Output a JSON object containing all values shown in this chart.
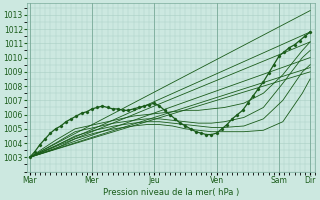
{
  "xlabel": "Pression niveau de la mer( hPa )",
  "ylim": [
    1002.0,
    1013.8
  ],
  "yticks": [
    1003,
    1004,
    1005,
    1006,
    1007,
    1008,
    1009,
    1010,
    1011,
    1012,
    1013
  ],
  "xtick_labels": [
    "Mar",
    "Mer",
    "Jeu",
    "Ven",
    "Sam",
    "Dir"
  ],
  "xtick_positions": [
    0,
    48,
    96,
    144,
    192,
    216
  ],
  "xlim": [
    -2,
    220
  ],
  "bg_color": "#cce8e0",
  "grid_color": "#aacfc5",
  "line_color": "#1a5c1a",
  "straight_lines": [
    {
      "x0": 0,
      "y0": 1003.0,
      "x1": 216,
      "y1": 1013.3
    },
    {
      "x0": 0,
      "y0": 1003.0,
      "x1": 216,
      "y1": 1011.8
    },
    {
      "x0": 0,
      "y0": 1003.0,
      "x1": 216,
      "y1": 1011.1
    },
    {
      "x0": 0,
      "y0": 1003.0,
      "x1": 216,
      "y1": 1010.0
    },
    {
      "x0": 0,
      "y0": 1003.0,
      "x1": 216,
      "y1": 1009.3
    },
    {
      "x0": 0,
      "y0": 1003.0,
      "x1": 216,
      "y1": 1009.0
    }
  ],
  "curved_lines": [
    {
      "x": [
        0,
        20,
        35,
        50,
        65,
        80,
        90,
        100,
        110,
        120,
        130,
        140,
        150,
        165,
        180,
        195,
        210,
        216
      ],
      "y": [
        1003.0,
        1004.2,
        1005.0,
        1005.3,
        1005.6,
        1005.9,
        1006.0,
        1006.1,
        1006.2,
        1006.3,
        1006.3,
        1006.4,
        1006.5,
        1006.8,
        1007.5,
        1008.8,
        1010.5,
        1011.1
      ]
    },
    {
      "x": [
        0,
        20,
        35,
        50,
        65,
        80,
        90,
        100,
        110,
        120,
        130,
        140,
        150,
        165,
        180,
        195,
        210,
        216
      ],
      "y": [
        1003.0,
        1004.0,
        1004.8,
        1005.1,
        1005.4,
        1005.6,
        1005.7,
        1005.7,
        1005.6,
        1005.5,
        1005.4,
        1005.4,
        1005.5,
        1005.8,
        1006.5,
        1008.2,
        1010.0,
        1010.5
      ]
    },
    {
      "x": [
        0,
        20,
        35,
        50,
        65,
        80,
        90,
        100,
        110,
        120,
        130,
        140,
        150,
        165,
        180,
        195,
        210,
        216
      ],
      "y": [
        1003.0,
        1003.8,
        1004.5,
        1004.9,
        1005.2,
        1005.4,
        1005.5,
        1005.5,
        1005.4,
        1005.3,
        1005.2,
        1005.1,
        1005.1,
        1005.2,
        1005.7,
        1007.0,
        1009.0,
        1009.5
      ]
    },
    {
      "x": [
        0,
        20,
        35,
        50,
        65,
        80,
        90,
        100,
        110,
        120,
        130,
        140,
        150,
        165,
        180,
        195,
        210,
        216
      ],
      "y": [
        1003.0,
        1003.6,
        1004.3,
        1004.7,
        1005.0,
        1005.2,
        1005.3,
        1005.3,
        1005.2,
        1005.0,
        1004.9,
        1004.8,
        1004.8,
        1004.8,
        1004.9,
        1005.5,
        1007.5,
        1008.5
      ]
    }
  ],
  "main_series": {
    "x": [
      0,
      4,
      8,
      12,
      16,
      20,
      24,
      28,
      32,
      36,
      40,
      44,
      48,
      52,
      56,
      60,
      64,
      68,
      72,
      76,
      80,
      84,
      88,
      92,
      96,
      100,
      104,
      108,
      112,
      116,
      120,
      124,
      128,
      132,
      136,
      140,
      144,
      148,
      152,
      156,
      160,
      164,
      168,
      172,
      176,
      180,
      184,
      188,
      192,
      196,
      200,
      204,
      208,
      212,
      216
    ],
    "y": [
      1003.0,
      1003.4,
      1003.9,
      1004.3,
      1004.7,
      1005.0,
      1005.2,
      1005.5,
      1005.7,
      1005.9,
      1006.1,
      1006.2,
      1006.4,
      1006.5,
      1006.6,
      1006.5,
      1006.4,
      1006.4,
      1006.3,
      1006.3,
      1006.4,
      1006.5,
      1006.6,
      1006.7,
      1006.8,
      1006.6,
      1006.3,
      1006.0,
      1005.7,
      1005.4,
      1005.2,
      1005.0,
      1004.8,
      1004.7,
      1004.6,
      1004.6,
      1004.7,
      1005.0,
      1005.3,
      1005.7,
      1006.0,
      1006.3,
      1006.8,
      1007.3,
      1007.8,
      1008.3,
      1008.9,
      1009.5,
      1010.1,
      1010.4,
      1010.7,
      1010.9,
      1011.2,
      1011.5,
      1011.8
    ]
  }
}
